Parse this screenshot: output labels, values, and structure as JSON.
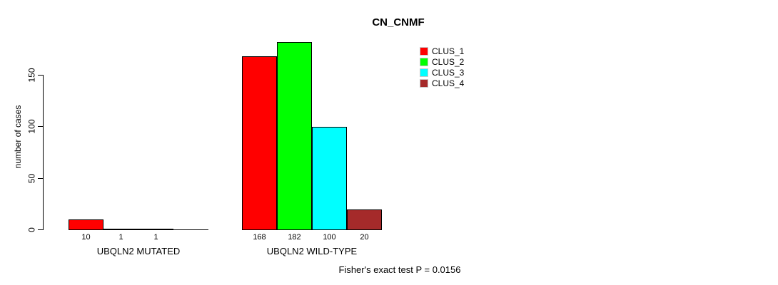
{
  "title": "CN_CNMF",
  "y_axis": {
    "label": "number of cases",
    "ticks": [
      "0",
      "50",
      "100",
      "150"
    ]
  },
  "x_axis": {
    "categories": [
      "UBQLN2 MUTATED",
      "UBQLN2 WILD-TYPE"
    ]
  },
  "legend": {
    "items": [
      {
        "label": "CLUS_1",
        "color": "#ff0000"
      },
      {
        "label": "CLUS_2",
        "color": "#00ff00"
      },
      {
        "label": "CLUS_3",
        "color": "#00ffff"
      },
      {
        "label": "CLUS_4",
        "color": "#a52a2a"
      }
    ]
  },
  "footer": "Fisher's exact test P = 0.0156",
  "chart_data": {
    "type": "bar",
    "title": "CN_CNMF",
    "xlabel": "",
    "ylabel": "number of cases",
    "ylim": [
      0,
      182
    ],
    "yticks": [
      0,
      50,
      100,
      150
    ],
    "grid": false,
    "legend_position": "top-right",
    "categories": [
      "UBQLN2 MUTATED",
      "UBQLN2 WILD-TYPE"
    ],
    "series": [
      {
        "name": "CLUS_1",
        "color": "#ff0000",
        "values": [
          10,
          168
        ]
      },
      {
        "name": "CLUS_2",
        "color": "#00ff00",
        "values": [
          1,
          182
        ]
      },
      {
        "name": "CLUS_3",
        "color": "#00ffff",
        "values": [
          1,
          100
        ]
      },
      {
        "name": "CLUS_4",
        "color": "#a52a2a",
        "values": [
          0,
          20
        ]
      }
    ],
    "bar_value_labels": {
      "shown": [
        [
          10,
          1,
          1,
          null
        ],
        [
          168,
          182,
          100,
          20
        ]
      ]
    },
    "annotation": "Fisher's exact test P = 0.0156"
  }
}
